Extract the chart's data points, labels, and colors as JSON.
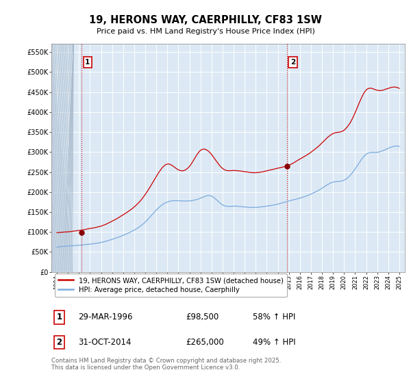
{
  "title": "19, HERONS WAY, CAERPHILLY, CF83 1SW",
  "subtitle": "Price paid vs. HM Land Registry's House Price Index (HPI)",
  "background_color": "#ffffff",
  "plot_bg_color": "#dce9f5",
  "grid_color": "#ffffff",
  "ylim": [
    0,
    570000
  ],
  "yticks": [
    0,
    50000,
    100000,
    150000,
    200000,
    250000,
    300000,
    350000,
    400000,
    450000,
    500000,
    550000
  ],
  "ytick_labels": [
    "£0",
    "£50K",
    "£100K",
    "£150K",
    "£200K",
    "£250K",
    "£300K",
    "£350K",
    "£400K",
    "£450K",
    "£500K",
    "£550K"
  ],
  "sale1_x": 1996.25,
  "sale1_y": 98500,
  "sale1_label": "1",
  "sale2_x": 2014.83,
  "sale2_y": 265000,
  "sale2_label": "2",
  "red_line_color": "#cc0000",
  "blue_line_color": "#7aaadd",
  "sale_marker_color": "#880000",
  "vline_color": "#cc0000",
  "legend_label_red": "19, HERONS WAY, CAERPHILLY, CF83 1SW (detached house)",
  "legend_label_blue": "HPI: Average price, detached house, Caerphilly",
  "table_entries": [
    {
      "num": "1",
      "date": "29-MAR-1996",
      "price": "£98,500",
      "hpi": "58% ↑ HPI"
    },
    {
      "num": "2",
      "date": "31-OCT-2014",
      "price": "£265,000",
      "hpi": "49% ↑ HPI"
    }
  ],
  "footer": "Contains HM Land Registry data © Crown copyright and database right 2025.\nThis data is licensed under the Open Government Licence v3.0.",
  "xlim_left": 1993.5,
  "xlim_right": 2025.5
}
